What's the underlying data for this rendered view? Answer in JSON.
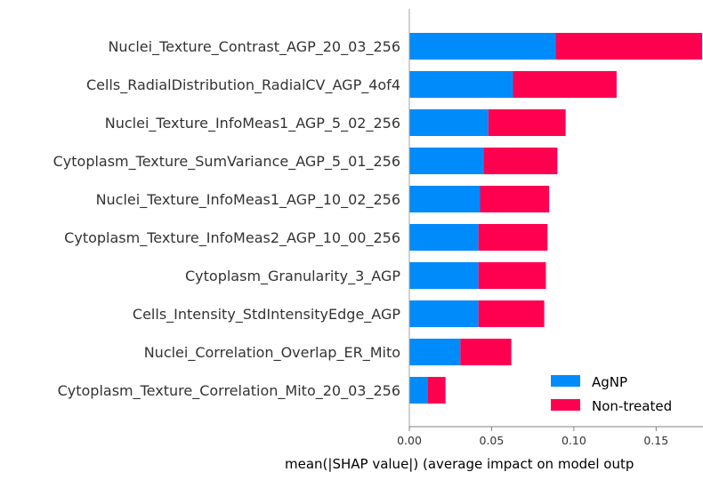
{
  "chart_data": {
    "type": "bar",
    "orientation": "horizontal",
    "stacked": true,
    "categories": [
      "Nuclei_Texture_Contrast_AGP_20_03_256",
      "Cells_RadialDistribution_RadialCV_AGP_4of4",
      "Nuclei_Texture_InfoMeas1_AGP_5_02_256",
      "Cytoplasm_Texture_SumVariance_AGP_5_01_256",
      "Nuclei_Texture_InfoMeas1_AGP_10_02_256",
      "Cytoplasm_Texture_InfoMeas2_AGP_10_00_256",
      "Cytoplasm_Granularity_3_AGP",
      "Cells_Intensity_StdIntensityEdge_AGP",
      "Nuclei_Correlation_Overlap_ER_Mito",
      "Cytoplasm_Texture_Correlation_Mito_20_03_256"
    ],
    "series": [
      {
        "name": "AgNP",
        "color": "#008bfb",
        "values": [
          0.089,
          0.063,
          0.048,
          0.045,
          0.043,
          0.042,
          0.042,
          0.042,
          0.031,
          0.011
        ]
      },
      {
        "name": "Non-treated",
        "color": "#ff0051",
        "values": [
          0.089,
          0.063,
          0.047,
          0.045,
          0.042,
          0.042,
          0.041,
          0.04,
          0.031,
          0.011
        ]
      }
    ],
    "xlabel": "mean(|SHAP value|) (average impact on model outp",
    "xlim": [
      0,
      0.1785
    ],
    "xticks": [
      0.0,
      0.05,
      0.1,
      0.15
    ],
    "xtick_labels": [
      "0.00",
      "0.05",
      "0.10",
      "0.15"
    ],
    "grid": false,
    "legend_position": "bottom-right"
  }
}
